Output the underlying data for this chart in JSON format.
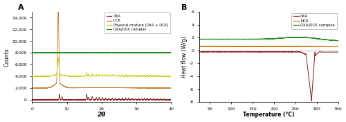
{
  "panel_A": {
    "title": "A",
    "xlabel": "2θ",
    "ylabel": "Counts",
    "xlim": [
      0,
      40
    ],
    "ylim": [
      -400,
      15000
    ],
    "yticks": [
      0,
      2000,
      4000,
      6000,
      8000,
      10000,
      12000,
      14000
    ],
    "xticks": [
      0,
      10,
      20,
      30,
      40
    ],
    "colors": {
      "OXA": "#8B1A1A",
      "DCK": "#CC7722",
      "Physical_mixture": "#CCCC00",
      "OXA_DCK_complex": "#228B22"
    },
    "offsets": {
      "OXA": 0,
      "DCK": 2000,
      "Physical_mixture": 4000,
      "OXA_DCK_complex": 8000
    }
  },
  "panel_B": {
    "title": "B",
    "xlabel": "Temperature (°C)",
    "ylabel": "Heat flow (W/g)",
    "xlim": [
      25,
      350
    ],
    "ylim": [
      -8,
      6
    ],
    "yticks": [
      -8,
      -6,
      -4,
      -2,
      0,
      2,
      4,
      6
    ],
    "xticks": [
      50,
      100,
      150,
      200,
      250,
      300,
      350
    ],
    "colors": {
      "OXA": "#8B1A1A",
      "DCK": "#CC7722",
      "OXA_DCK_complex": "#228B22"
    }
  }
}
